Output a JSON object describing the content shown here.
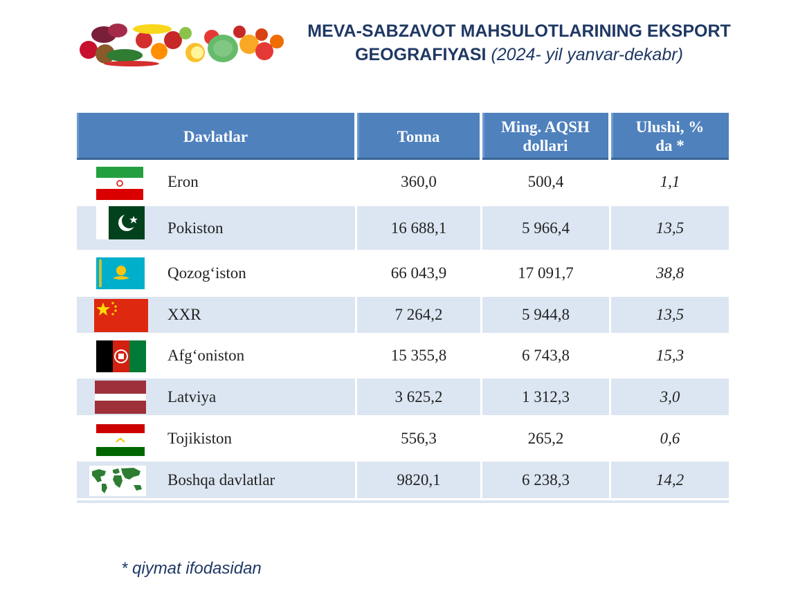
{
  "title": {
    "line1": "MEVA-SABZAVOT MAHSULOTLARINING EKSPORT",
    "line2_main": "GEOGRAFIYASI",
    "line2_sub": "(2024- yil yanvar-dekabr)"
  },
  "table": {
    "headers": [
      "Davlatlar",
      "Tonna",
      "Ming. AQSH dollari",
      "Ulushi, % da *"
    ],
    "rows": [
      {
        "flag": "iran-flag-icon",
        "country": "Eron",
        "tonna": "360,0",
        "usd": "500,4",
        "share": "1,1"
      },
      {
        "flag": "pakistan-flag-icon",
        "country": "Pokiston",
        "tonna": "16 688,1",
        "usd": "5 966,4",
        "share": "13,5"
      },
      {
        "flag": "kazakhstan-flag-icon",
        "country": "Qozog‘iston",
        "tonna": "66 043,9",
        "usd": "17 091,7",
        "share": "38,8"
      },
      {
        "flag": "china-flag-icon",
        "country": "XXR",
        "tonna": "7 264,2",
        "usd": "5 944,8",
        "share": "13,5"
      },
      {
        "flag": "afghanistan-flag-icon",
        "country": "Afg‘oniston",
        "tonna": "15 355,8",
        "usd": "6 743,8",
        "share": "15,3"
      },
      {
        "flag": "latvia-flag-icon",
        "country": "Latviya",
        "tonna": "3 625,2",
        "usd": "1 312,3",
        "share": "3,0"
      },
      {
        "flag": "tajikistan-flag-icon",
        "country": "Tojikiston",
        "tonna": "556,3",
        "usd": "265,2",
        "share": "0,6"
      },
      {
        "flag": "world-map-icon",
        "country": "Boshqa davlatlar",
        "tonna": "9820,1",
        "usd": "6 238,3",
        "share": "14,2"
      }
    ]
  },
  "footer": "* qiymat ifodasidan",
  "colors": {
    "header_bg": "#4f81bd",
    "alt_row_bg": "#dce6f2",
    "title_color": "#1f3864"
  }
}
